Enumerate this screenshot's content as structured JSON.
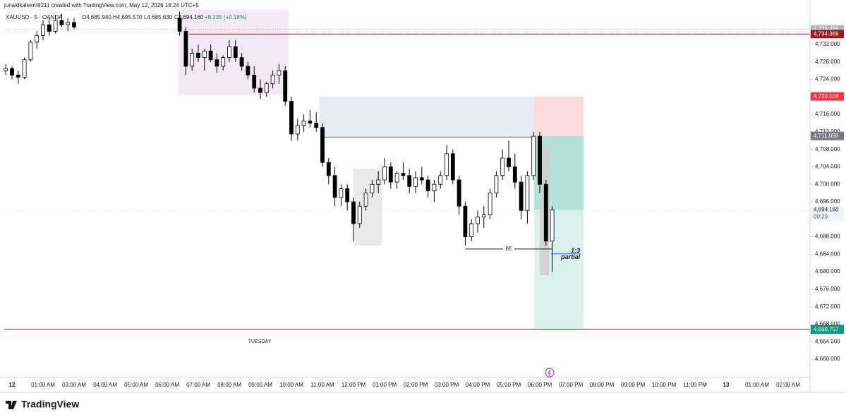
{
  "header": "junaidkaleem9211 created with TradingView.com, May 12, 2026 18:24 UTC+5",
  "chart_data": {
    "type": "candlestick",
    "symbol": "XAUUSD · 5 · OANDA",
    "legend_ohlc": [
      "O4,685.940",
      "H4,695.570",
      "L4,685.630",
      "C4,694.160",
      "+8.235 (+0.18%)"
    ],
    "day_label": "TUESDAY",
    "up_color": "#ffffff",
    "down_color": "#000000",
    "wick_color": "#000000",
    "xlim": [
      -0.25,
      25.7
    ],
    "ylim": [
      4656,
      4740
    ],
    "grid": false,
    "xticks": [
      {
        "value": 0,
        "label": "12"
      },
      {
        "value": 1,
        "label": "01:00 AM"
      },
      {
        "value": 2,
        "label": "03:00 AM"
      },
      {
        "value": 3,
        "label": "04:00 AM"
      },
      {
        "value": 4,
        "label": "05:00 AM"
      },
      {
        "value": 5,
        "label": "06:00 AM"
      },
      {
        "value": 6,
        "label": "07:00 AM"
      },
      {
        "value": 7,
        "label": "08:00 AM"
      },
      {
        "value": 8,
        "label": "09:00 AM"
      },
      {
        "value": 9,
        "label": "10:00 AM"
      },
      {
        "value": 10,
        "label": "11:00 AM"
      },
      {
        "value": 11,
        "label": "12:00 PM"
      },
      {
        "value": 12,
        "label": "01:00 PM"
      },
      {
        "value": 13,
        "label": "02:00 PM"
      },
      {
        "value": 14,
        "label": "03:00 PM"
      },
      {
        "value": 15,
        "label": "04:00 PM"
      },
      {
        "value": 16,
        "label": "05:00 PM"
      },
      {
        "value": 17,
        "label": "06:00 PM"
      },
      {
        "value": 18,
        "label": "07:00 PM"
      },
      {
        "value": 19,
        "label": "08:00 PM"
      },
      {
        "value": 20,
        "label": "09:00 PM"
      },
      {
        "value": 21,
        "label": "10:00 PM"
      },
      {
        "value": 22,
        "label": "11:00 PM"
      },
      {
        "value": 23,
        "label": "13"
      },
      {
        "value": 24,
        "label": "01:00 AM"
      },
      {
        "value": 25,
        "label": "02:00 AM"
      }
    ],
    "yticks": [
      {
        "value": 4732,
        "label": "4,732.000"
      },
      {
        "value": 4728,
        "label": "4,728.000"
      },
      {
        "value": 4724,
        "label": "4,724.000"
      },
      {
        "value": 4720,
        "label": "4,720.000"
      },
      {
        "value": 4716,
        "label": "4,716.000"
      },
      {
        "value": 4712,
        "label": "4,712.000"
      },
      {
        "value": 4708,
        "label": "4,708.000"
      },
      {
        "value": 4704,
        "label": "4,704.000"
      },
      {
        "value": 4700,
        "label": "4,700.000"
      },
      {
        "value": 4696,
        "label": "4,696.000"
      },
      {
        "value": 4692,
        "label": "4,692.000"
      },
      {
        "value": 4688,
        "label": "4,688.000"
      },
      {
        "value": 4684,
        "label": "4,684.000"
      },
      {
        "value": 4680,
        "label": "4,680.000"
      },
      {
        "value": 4676,
        "label": "4,676.000"
      },
      {
        "value": 4672,
        "label": "4,672.000"
      },
      {
        "value": 4668,
        "label": "4,668.000"
      },
      {
        "value": 4664,
        "label": "4,664.000"
      },
      {
        "value": 4660,
        "label": "4,660.000"
      }
    ],
    "x": [
      -0.2,
      0,
      0.2,
      0.4,
      0.6,
      0.8,
      1,
      1.2,
      1.4,
      1.6,
      1.8,
      2,
      5.4,
      5.6,
      5.8,
      6,
      6.2,
      6.4,
      6.6,
      6.8,
      7,
      7.2,
      7.4,
      7.6,
      7.8,
      8,
      8.2,
      8.4,
      8.6,
      8.8,
      9,
      9.2,
      9.4,
      9.6,
      9.8,
      10,
      10.2,
      10.4,
      10.6,
      10.8,
      11,
      11.2,
      11.4,
      11.6,
      11.8,
      12,
      12.2,
      12.4,
      12.6,
      12.8,
      13,
      13.2,
      13.4,
      13.6,
      13.8,
      14,
      14.2,
      14.4,
      14.6,
      14.8,
      15,
      15.2,
      15.4,
      15.6,
      15.8,
      16,
      16.2,
      16.4,
      16.6,
      16.8,
      17,
      17.2,
      17.4
    ],
    "open": [
      4726,
      4726.5,
      4725,
      4724.5,
      4728.5,
      4732.5,
      4734,
      4736.5,
      4735,
      4737.5,
      4736.5,
      4737,
      4738,
      4735,
      4727,
      4730,
      4729,
      4730.5,
      4728.5,
      4727,
      4729,
      4731.5,
      4729,
      4727,
      4725,
      4722,
      4721,
      4723,
      4725,
      4726,
      4719,
      4711.5,
      4713.5,
      4714.5,
      4714,
      4713,
      4705,
      4702,
      4697,
      4699,
      4696,
      4691,
      4695,
      4698,
      4700,
      4701,
      4704,
      4700.5,
      4702.5,
      4702,
      4699.5,
      4701.5,
      4701,
      4698.5,
      4700,
      4702,
      4707,
      4701,
      4695,
      4688,
      4691,
      4692.5,
      4693,
      4698,
      4702,
      4706,
      4704,
      4700.5,
      4694,
      4702,
      4711,
      4700,
      4687
    ],
    "high": [
      4727.5,
      4727,
      4726,
      4729,
      4733,
      4735,
      4737.5,
      4738,
      4738.5,
      4739,
      4738,
      4738,
      4739.5,
      4736,
      4731,
      4732,
      4731,
      4732,
      4730,
      4729.5,
      4733,
      4733,
      4730,
      4728,
      4727,
      4724,
      4723.5,
      4726,
      4727.5,
      4727,
      4720,
      4715,
      4716,
      4717,
      4716.5,
      4714,
      4706,
      4704,
      4700,
      4700,
      4697,
      4696,
      4699,
      4701,
      4703,
      4706,
      4705,
      4703,
      4705,
      4703.5,
      4703,
      4704,
      4702,
      4701,
      4703,
      4709,
      4708,
      4702,
      4696,
      4692,
      4694,
      4695,
      4699,
      4703,
      4708,
      4710,
      4707,
      4702,
      4703,
      4712,
      4712,
      4701,
      4695
    ],
    "low": [
      4725,
      4724,
      4723,
      4724,
      4728,
      4731,
      4733,
      4734,
      4734.5,
      4736,
      4735,
      4735.5,
      4734,
      4725,
      4726,
      4728,
      4726,
      4728,
      4725.5,
      4726,
      4728,
      4728,
      4726,
      4724,
      4721,
      4719.5,
      4720,
      4722,
      4723,
      4718,
      4710,
      4710,
      4712,
      4713,
      4712,
      4704,
      4700,
      4695,
      4695,
      4694,
      4687,
      4690,
      4694,
      4697,
      4698,
      4700,
      4699,
      4699,
      4701,
      4698,
      4698,
      4700,
      4697,
      4696,
      4699,
      4701,
      4700,
      4693,
      4686,
      4687,
      4689,
      4690,
      4692,
      4697,
      4701,
      4703,
      4699,
      4692,
      4691,
      4701,
      4698,
      4686,
      4680
    ],
    "close": [
      4726.5,
      4725,
      4724.5,
      4728.5,
      4732.5,
      4734,
      4736.5,
      4735,
      4737.5,
      4736.5,
      4737,
      4736,
      4735,
      4727,
      4730,
      4729,
      4730.5,
      4728.5,
      4727,
      4729,
      4731.5,
      4729,
      4727,
      4725,
      4722,
      4721,
      4723,
      4725,
      4726,
      4719,
      4711.5,
      4713.5,
      4714.5,
      4714,
      4713,
      4705,
      4702,
      4697,
      4699,
      4696,
      4691,
      4695,
      4698,
      4700,
      4701,
      4704,
      4700.5,
      4702.5,
      4702,
      4699.5,
      4701.5,
      4701,
      4698.5,
      4700,
      4702,
      4707,
      4701,
      4695,
      4688,
      4691,
      4692.5,
      4693,
      4698,
      4702,
      4706,
      4704,
      4700.5,
      4694,
      4702,
      4711,
      4700,
      4687,
      4694.16
    ],
    "zones": [
      {
        "x0": 5.36,
        "x1": 8.9,
        "top": 4740,
        "bottom": 4720.4,
        "color": "#f2e4f6"
      },
      {
        "x0": 9.9,
        "x1": 16.82,
        "top": 4720.104,
        "bottom": 4711.058,
        "color": "#e3e8f4"
      },
      {
        "x0": 11.0,
        "x1": 11.92,
        "top": 4703.6,
        "bottom": 4686,
        "color": "#e6e6e6"
      },
      {
        "x0": 16.82,
        "x1": 18.41,
        "top": 4720.104,
        "bottom": 4711.058,
        "color": "#fad2d6"
      },
      {
        "x0": 16.82,
        "x1": 18.41,
        "top": 4711.058,
        "bottom": 4694.16,
        "color": "#a6dccf"
      },
      {
        "x0": 16.82,
        "x1": 18.41,
        "top": 4694.16,
        "bottom": 4666.757,
        "color": "#d4efe8"
      },
      {
        "x0": 17.0,
        "x1": 17.3,
        "top": 4708.8,
        "bottom": 4679.2,
        "color": "#cfcfcf"
      }
    ],
    "levels": [
      {
        "value": 4735.455,
        "color": "#b2b5be",
        "style": "dotted",
        "x0": -0.25
      },
      {
        "value": 4734.369,
        "color": "#9c1c26",
        "style": "solid",
        "x0": 5.7
      },
      {
        "value": 4710.8,
        "color": "#555555",
        "style": "solid",
        "x0": 10.05,
        "x1": 16.82
      },
      {
        "value": 4694.16,
        "color": "#e0e3eb",
        "style": "dotted",
        "x0": -0.25
      },
      {
        "value": 4666.849,
        "color": "#9c1c26",
        "style": "solid",
        "x0": -0.25
      }
    ],
    "be_line": {
      "label": "BE",
      "value": 4685.2,
      "x0": 14.6,
      "x1": 17.4
    },
    "partial_line": {
      "value": 4684.1,
      "x0": 17.35,
      "x1": 18.3,
      "labels": [
        "1:3",
        "partial"
      ]
    },
    "price_labels": [
      {
        "value": 4735.455,
        "label": "4,735.455",
        "color": "#b2b5be"
      },
      {
        "value": 4734.369,
        "label": "4,734.369",
        "color": "#9c1c26"
      },
      {
        "value": 4720.104,
        "label": "4,720.104",
        "color": "#f23645"
      },
      {
        "value": 4711.058,
        "label": "4,711.058",
        "color": "#787b86"
      },
      {
        "value": 4694.16,
        "label": "4,694.160",
        "color": "#f0f3fa",
        "countdown": "00:29"
      },
      {
        "value": 4666.849,
        "label": "4,666.849",
        "color": "#7f0f1a"
      },
      {
        "value": 4666.757,
        "label": "4,666.757",
        "color": "#089981"
      }
    ]
  },
  "footer": "TradingView"
}
